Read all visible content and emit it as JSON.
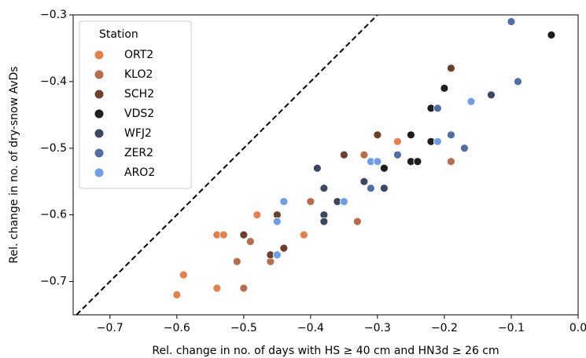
{
  "chart_data": {
    "type": "scatter",
    "xlabel": "Rel. change in no. of days with HS ≥ 40 cm and HN3d ≥ 26 cm",
    "ylabel": "Rel. change in no. of dry-snow AvDs",
    "legend_title": "Station",
    "legend_position": "upper left",
    "xlim": [
      -0.755,
      0.0
    ],
    "ylim": [
      -0.75,
      -0.3
    ],
    "xticks": [
      {
        "value": -0.7,
        "label": "−0.7"
      },
      {
        "value": -0.6,
        "label": "−0.6"
      },
      {
        "value": -0.5,
        "label": "−0.5"
      },
      {
        "value": -0.4,
        "label": "−0.4"
      },
      {
        "value": -0.3,
        "label": "−0.3"
      },
      {
        "value": -0.2,
        "label": "−0.2"
      },
      {
        "value": -0.1,
        "label": "−0.1"
      },
      {
        "value": 0.0,
        "label": "0.0"
      }
    ],
    "yticks": [
      {
        "value": -0.3,
        "label": "−0.3"
      },
      {
        "value": -0.4,
        "label": "−0.4"
      },
      {
        "value": -0.5,
        "label": "−0.5"
      },
      {
        "value": -0.6,
        "label": "−0.6"
      },
      {
        "value": -0.7,
        "label": "−0.7"
      }
    ],
    "series": [
      {
        "name": "ORT2",
        "color": "#e5804a",
        "x": [
          -0.6,
          -0.59,
          -0.54,
          -0.53,
          -0.54,
          -0.48,
          -0.41,
          -0.27
        ],
        "values": [
          -0.72,
          -0.69,
          -0.63,
          -0.63,
          -0.71,
          -0.6,
          -0.63,
          -0.49
        ]
      },
      {
        "name": "KLO2",
        "color": "#b86c4a",
        "x": [
          -0.51,
          -0.5,
          -0.49,
          -0.46,
          -0.4,
          -0.33,
          -0.32,
          -0.19
        ],
        "values": [
          -0.67,
          -0.71,
          -0.64,
          -0.67,
          -0.58,
          -0.61,
          -0.51,
          -0.52
        ]
      },
      {
        "name": "SCH2",
        "color": "#6e402c",
        "x": [
          -0.5,
          -0.45,
          -0.44,
          -0.46,
          -0.35,
          -0.3,
          -0.19
        ],
        "values": [
          -0.63,
          -0.6,
          -0.65,
          -0.66,
          -0.51,
          -0.48,
          -0.38
        ]
      },
      {
        "name": "VDS2",
        "color": "#1e1e1e",
        "x": [
          -0.29,
          -0.25,
          -0.25,
          -0.24,
          -0.2,
          -0.22,
          -0.22,
          -0.04
        ],
        "values": [
          -0.53,
          -0.48,
          -0.52,
          -0.52,
          -0.41,
          -0.44,
          -0.49,
          -0.33
        ]
      },
      {
        "name": "WFJ2",
        "color": "#3a4862",
        "x": [
          -0.39,
          -0.38,
          -0.38,
          -0.38,
          -0.36,
          -0.32,
          -0.29,
          -0.13
        ],
        "values": [
          -0.53,
          -0.56,
          -0.6,
          -0.61,
          -0.58,
          -0.55,
          -0.56,
          -0.42
        ]
      },
      {
        "name": "ZER2",
        "color": "#4f6ea6",
        "x": [
          -0.31,
          -0.27,
          -0.21,
          -0.19,
          -0.17,
          -0.1,
          -0.09
        ],
        "values": [
          -0.56,
          -0.51,
          -0.44,
          -0.48,
          -0.5,
          -0.31,
          -0.4
        ]
      },
      {
        "name": "ARO2",
        "color": "#6e9fe6",
        "x": [
          -0.44,
          -0.45,
          -0.45,
          -0.35,
          -0.31,
          -0.3,
          -0.21,
          -0.16
        ],
        "values": [
          -0.58,
          -0.61,
          -0.66,
          -0.58,
          -0.52,
          -0.52,
          -0.49,
          -0.43
        ]
      }
    ]
  }
}
